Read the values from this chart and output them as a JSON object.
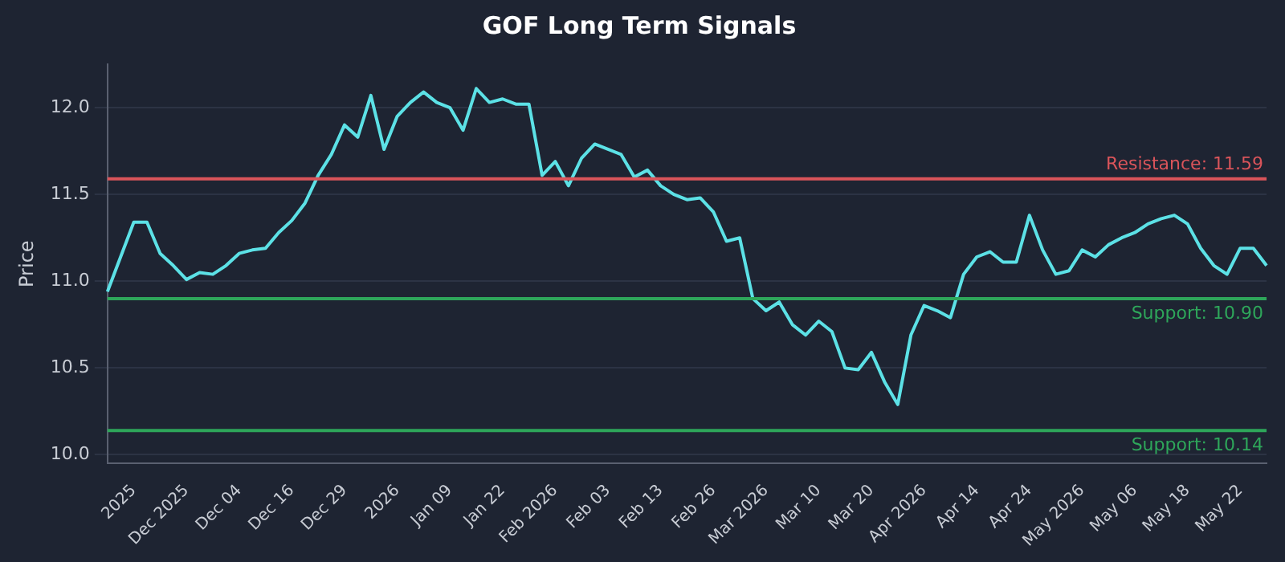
{
  "chart_data": {
    "type": "line",
    "title": "GOF Long Term Signals",
    "ylabel": "Price",
    "categories": [
      null,
      null,
      "2025",
      null,
      null,
      null,
      "Dec 2025",
      null,
      null,
      null,
      "Dec 04",
      null,
      null,
      null,
      "Dec 16",
      null,
      null,
      null,
      "Dec 29",
      null,
      null,
      null,
      "2026",
      null,
      null,
      null,
      "Jan 09",
      null,
      null,
      null,
      "Jan 22",
      null,
      null,
      null,
      "Feb 2026",
      null,
      null,
      null,
      "Feb 03",
      null,
      null,
      null,
      "Feb 13",
      null,
      null,
      null,
      "Feb 26",
      null,
      null,
      null,
      "Mar 2026",
      null,
      null,
      null,
      "Mar 10",
      null,
      null,
      null,
      "Mar 20",
      null,
      null,
      null,
      "Apr 2026",
      null,
      null,
      null,
      "Apr 14",
      null,
      null,
      null,
      "Apr 24",
      null,
      null,
      null,
      "May 2026",
      null,
      null,
      null,
      "May 06",
      null,
      null,
      null,
      "May 18",
      null,
      null,
      null,
      "May 22",
      null,
      null
    ],
    "series": [
      {
        "color": "#5ce1e6",
        "values": [
          10.94,
          11.14,
          11.34,
          11.34,
          11.16,
          11.09,
          11.01,
          11.05,
          11.04,
          11.09,
          11.16,
          11.18,
          11.19,
          11.28,
          11.35,
          11.45,
          11.61,
          11.73,
          11.9,
          11.83,
          12.07,
          11.76,
          11.95,
          12.03,
          12.09,
          12.03,
          12.0,
          11.87,
          12.11,
          12.03,
          12.05,
          12.02,
          12.02,
          11.61,
          11.69,
          11.55,
          11.71,
          11.79,
          11.76,
          11.73,
          11.6,
          11.64,
          11.55,
          11.5,
          11.47,
          11.48,
          11.4,
          11.23,
          11.25,
          10.9,
          10.83,
          10.88,
          10.75,
          10.69,
          10.77,
          10.71,
          10.5,
          10.49,
          10.59,
          10.42,
          10.29,
          10.69,
          10.86,
          10.83,
          10.79,
          11.04,
          11.14,
          11.17,
          11.11,
          11.11,
          11.38,
          11.18,
          11.04,
          11.06,
          11.18,
          11.14,
          11.21,
          11.25,
          11.28,
          11.33,
          11.36,
          11.38,
          11.33,
          11.19,
          11.09,
          11.04,
          11.19,
          11.19,
          11.09
        ]
      }
    ],
    "ylim": [
      9.95,
      12.25
    ],
    "yticks": [
      {
        "value": 10,
        "label": "10.0"
      },
      {
        "value": 10.5,
        "label": "10.5"
      },
      {
        "value": 11,
        "label": "11.0"
      },
      {
        "value": 11.5,
        "label": "11.5"
      },
      {
        "value": 12,
        "label": "12.0"
      }
    ],
    "grid": "y",
    "legend": false,
    "marker": "none",
    "line_style": "solid",
    "ref_lines": [
      {
        "axis": "y",
        "value": 11.59,
        "label": "Resistance: 11.59",
        "color": "#d9545a"
      },
      {
        "axis": "y",
        "value": 10.9,
        "label": "Support: 10.90",
        "color": "#2ea65a"
      },
      {
        "axis": "y",
        "value": 10.14,
        "label": "Support: 10.14",
        "color": "#2ea65a"
      }
    ]
  }
}
